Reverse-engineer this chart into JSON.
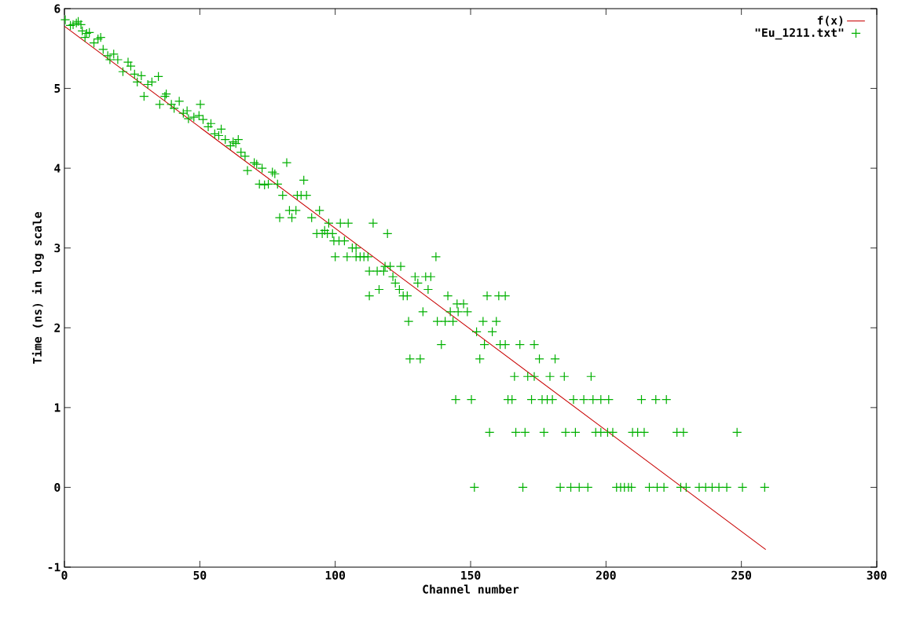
{
  "chart_data": {
    "type": "scatter",
    "xlabel": "Channel number",
    "ylabel": "Time (ns) in log scale",
    "xlim": [
      0,
      300
    ],
    "ylim": [
      -1,
      6
    ],
    "xticks": [
      0,
      50,
      100,
      150,
      200,
      250,
      300
    ],
    "yticks": [
      -1,
      0,
      1,
      2,
      3,
      4,
      5,
      6
    ],
    "legend": "top right",
    "series": [
      {
        "name": "f(x)",
        "type": "line",
        "color": "#c80000",
        "marker": "none",
        "x": [
          0,
          259
        ],
        "values": [
          5.78,
          -0.78
        ]
      },
      {
        "name": "\"Eu_1211.txt\"",
        "color": "#00b000",
        "marker": "cross",
        "x": [
          0.3,
          2.2,
          3.2,
          4.4,
          5.1,
          6.1,
          6.6,
          7.6,
          8.2,
          9.2,
          10.9,
          12.4,
          13.4,
          14.3,
          16.0,
          16.8,
          18.2,
          19.7,
          21.6,
          23.5,
          24.5,
          25.9,
          26.9,
          28.4,
          29.4,
          30.8,
          32.3,
          34.7,
          35.2,
          37.1,
          37.6,
          39.5,
          40.5,
          42.4,
          43.9,
          45.3,
          45.8,
          47.8,
          49.7,
          50.2,
          51.2,
          53.1,
          54.1,
          55.5,
          57.0,
          57.9,
          59.4,
          61.3,
          62.3,
          63.3,
          64.2,
          65.2,
          66.7,
          67.6,
          70.1,
          71.0,
          73.0,
          72.0,
          73.9,
          75.3,
          76.8,
          77.7,
          78.7,
          82.1,
          88.4,
          80.6,
          86.0,
          87.4,
          89.4,
          79.5,
          84.0,
          91.3,
          83.1,
          85.5,
          94.2,
          97.6,
          101.9,
          104.8,
          114.0,
          96.1,
          93.2,
          95.2,
          97.1,
          99.0,
          119.3,
          99.5,
          101.4,
          103.4,
          106.3,
          107.7,
          100.0,
          104.4,
          107.7,
          109.2,
          110.6,
          112.1,
          137.2,
          118.4,
          120.3,
          124.2,
          112.6,
          115.5,
          117.9,
          121.3,
          129.5,
          133.4,
          135.3,
          122.2,
          130.5,
          116.2,
          123.7,
          134.3,
          112.6,
          125.1,
          126.6,
          141.6,
          156.1,
          160.4,
          162.8,
          145.0,
          147.4,
          132.4,
          142.5,
          145.4,
          148.8,
          127.1,
          137.7,
          140.6,
          143.5,
          154.6,
          159.5,
          152.2,
          158.0,
          139.2,
          155.1,
          160.9,
          162.8,
          168.2,
          173.5,
          127.6,
          131.4,
          153.4,
          175.4,
          181.2,
          166.2,
          171.1,
          173.5,
          179.3,
          184.6,
          194.5,
          144.5,
          150.3,
          163.8,
          165.3,
          172.5,
          176.4,
          178.3,
          180.2,
          188.0,
          191.8,
          195.2,
          198.1,
          201.0,
          213.1,
          218.4,
          222.3,
          157.0,
          166.7,
          170.1,
          177.1,
          185.1,
          188.7,
          196.2,
          198.1,
          200.6,
          202.5,
          209.8,
          211.7,
          214.1,
          226.2,
          228.6,
          248.4,
          151.4,
          169.3,
          183.1,
          187.0,
          190.1,
          193.3,
          203.9,
          205.4,
          206.8,
          208.3,
          209.4,
          216.0,
          218.9,
          221.4,
          227.6,
          229.6,
          234.4,
          236.8,
          239.2,
          241.7,
          244.6,
          250.4,
          258.6
        ],
        "values": [
          5.86,
          5.79,
          5.8,
          5.82,
          5.84,
          5.8,
          5.72,
          5.64,
          5.69,
          5.7,
          5.57,
          5.62,
          5.64,
          5.49,
          5.41,
          5.36,
          5.43,
          5.36,
          5.21,
          5.33,
          5.28,
          5.18,
          5.08,
          5.16,
          4.9,
          5.05,
          5.08,
          5.15,
          4.8,
          4.9,
          4.93,
          4.8,
          4.75,
          4.84,
          4.69,
          4.72,
          4.62,
          4.64,
          4.66,
          4.8,
          4.61,
          4.52,
          4.56,
          4.43,
          4.41,
          4.49,
          4.36,
          4.28,
          4.33,
          4.31,
          4.36,
          4.2,
          4.15,
          3.97,
          4.07,
          4.05,
          4.0,
          3.8,
          3.79,
          3.8,
          3.95,
          3.93,
          3.8,
          4.07,
          3.85,
          3.66,
          3.66,
          3.66,
          3.66,
          3.38,
          3.38,
          3.38,
          3.47,
          3.47,
          3.47,
          3.31,
          3.31,
          3.31,
          3.31,
          3.22,
          3.18,
          3.18,
          3.18,
          3.18,
          3.18,
          3.09,
          3.09,
          3.09,
          3.0,
          3.0,
          2.89,
          2.89,
          2.89,
          2.89,
          2.89,
          2.89,
          2.89,
          2.77,
          2.77,
          2.77,
          2.71,
          2.71,
          2.71,
          2.64,
          2.64,
          2.64,
          2.64,
          2.56,
          2.56,
          2.48,
          2.48,
          2.48,
          2.4,
          2.4,
          2.4,
          2.4,
          2.4,
          2.4,
          2.4,
          2.3,
          2.3,
          2.2,
          2.2,
          2.2,
          2.2,
          2.08,
          2.08,
          2.08,
          2.08,
          2.08,
          2.08,
          1.95,
          1.95,
          1.79,
          1.79,
          1.79,
          1.79,
          1.79,
          1.79,
          1.61,
          1.61,
          1.61,
          1.61,
          1.61,
          1.39,
          1.39,
          1.39,
          1.39,
          1.39,
          1.39,
          1.1,
          1.1,
          1.1,
          1.1,
          1.1,
          1.1,
          1.1,
          1.1,
          1.1,
          1.1,
          1.1,
          1.1,
          1.1,
          1.1,
          1.1,
          1.1,
          0.69,
          0.69,
          0.69,
          0.69,
          0.69,
          0.69,
          0.69,
          0.69,
          0.69,
          0.69,
          0.69,
          0.69,
          0.69,
          0.69,
          0.69,
          0.69,
          0,
          0,
          0,
          0,
          0,
          0,
          0,
          0,
          0,
          0,
          0,
          0,
          0,
          0,
          0,
          0,
          0,
          0,
          0,
          0,
          0,
          0,
          0
        ]
      }
    ]
  }
}
